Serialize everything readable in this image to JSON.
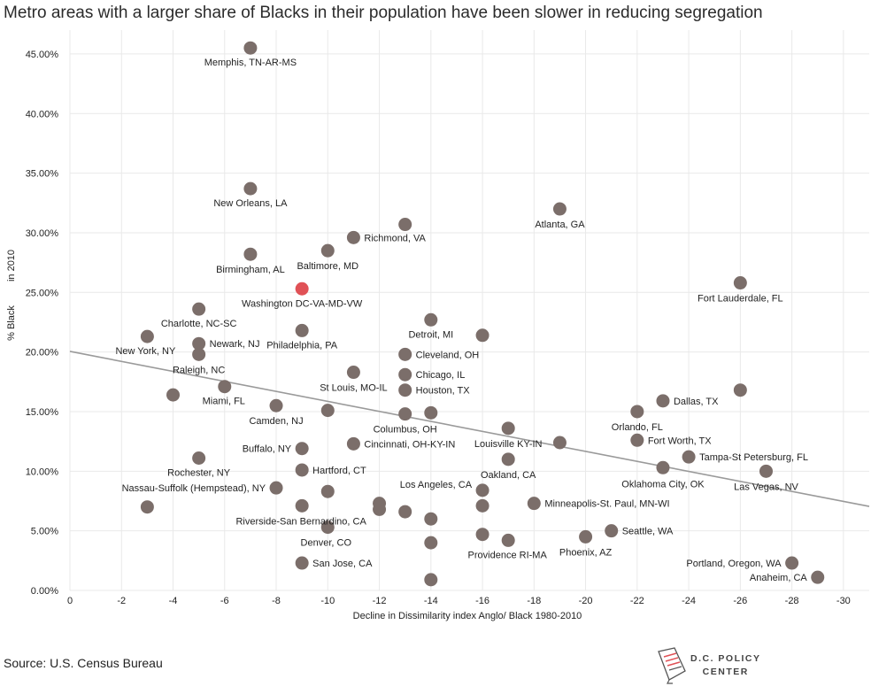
{
  "title": "Metro areas with a larger share of Blacks in their population have been slower in reducing segregation",
  "source": "Source: U.S. Census Bureau",
  "logo": {
    "line1": "D.C. POLICY",
    "line2": "CENTER"
  },
  "colors": {
    "point": "#7b6e6a",
    "highlight": "#e05156",
    "trend": "#9a9a9a",
    "grid": "#e9e9e9"
  },
  "chart_data": {
    "type": "scatter",
    "xlabel": "Decline in Dissimilarity index Anglo/ Black 1980-2010",
    "ylabel_lines": [
      "% Black",
      "in 2010"
    ],
    "xlim": [
      0,
      -31
    ],
    "ylim": [
      0,
      0.47
    ],
    "x_ticks": [
      0,
      -2,
      -4,
      -6,
      -8,
      -10,
      -12,
      -14,
      -16,
      -18,
      -20,
      -22,
      -24,
      -26,
      -28,
      -30
    ],
    "x_tick_labels": [
      "0",
      "-2",
      "-4",
      "-6",
      "-8",
      "-10",
      "-12",
      "-14",
      "-16",
      "-18",
      "-20",
      "-22",
      "-24",
      "-26",
      "-28",
      "-30"
    ],
    "y_ticks": [
      0,
      0.05,
      0.1,
      0.15,
      0.2,
      0.25,
      0.3,
      0.35,
      0.4,
      0.45
    ],
    "y_tick_labels": [
      "0.00%",
      "5.00%",
      "10.00%",
      "15.00%",
      "20.00%",
      "25.00%",
      "30.00%",
      "35.00%",
      "40.00%",
      "45.00%"
    ],
    "trendline": {
      "x": [
        0,
        -31
      ],
      "y": [
        0.2005,
        0.0705
      ]
    },
    "points": [
      {
        "x": -7,
        "y": 0.455,
        "label": "Memphis, TN-AR-MS",
        "dx": 0,
        "dy": 20,
        "anchor": "middle"
      },
      {
        "x": -7,
        "y": 0.337,
        "label": "New Orleans, LA",
        "dx": 0,
        "dy": 20,
        "anchor": "middle"
      },
      {
        "x": -19,
        "y": 0.32,
        "label": "Atlanta, GA",
        "dx": 0,
        "dy": 21,
        "anchor": "middle"
      },
      {
        "x": -13,
        "y": 0.307,
        "label": "",
        "dx": 0,
        "dy": 0,
        "anchor": "middle"
      },
      {
        "x": -11,
        "y": 0.296,
        "label": "Richmond, VA",
        "dx": 12,
        "dy": 4,
        "anchor": "start"
      },
      {
        "x": -10,
        "y": 0.285,
        "label": "Baltimore, MD",
        "dx": 0,
        "dy": 21,
        "anchor": "middle"
      },
      {
        "x": -7,
        "y": 0.282,
        "label": "Birmingham, AL",
        "dx": 0,
        "dy": 21,
        "anchor": "middle"
      },
      {
        "x": -26,
        "y": 0.258,
        "label": "Fort Lauderdale, FL",
        "dx": 0,
        "dy": 21,
        "anchor": "middle"
      },
      {
        "x": -9,
        "y": 0.253,
        "label": "Washington DC-VA-MD-VW",
        "dx": 0,
        "dy": 20,
        "anchor": "middle",
        "highlight": true
      },
      {
        "x": -5,
        "y": 0.236,
        "label": "Charlotte, NC-SC",
        "dx": 0,
        "dy": 20,
        "anchor": "middle"
      },
      {
        "x": -14,
        "y": 0.227,
        "label": "Detroit, MI",
        "dx": 0,
        "dy": 20,
        "anchor": "middle"
      },
      {
        "x": -9,
        "y": 0.218,
        "label": "Philadelphia, PA",
        "dx": 0,
        "dy": 20,
        "anchor": "middle"
      },
      {
        "x": -16,
        "y": 0.214,
        "label": "",
        "dx": 0,
        "dy": 0,
        "anchor": "middle"
      },
      {
        "x": -3,
        "y": 0.213,
        "label": "New York, NY",
        "dx": -2,
        "dy": 20,
        "anchor": "middle"
      },
      {
        "x": -5,
        "y": 0.207,
        "label": "Newark, NJ",
        "dx": 12,
        "dy": 4,
        "anchor": "start"
      },
      {
        "x": -5,
        "y": 0.198,
        "label": "Raleigh, NC",
        "dx": 0,
        "dy": 21,
        "anchor": "middle"
      },
      {
        "x": -13,
        "y": 0.198,
        "label": "Cleveland, OH",
        "dx": 12,
        "dy": 4,
        "anchor": "start"
      },
      {
        "x": -11,
        "y": 0.183,
        "label": "St Louis, MO-IL",
        "dx": 0,
        "dy": 21,
        "anchor": "middle"
      },
      {
        "x": -13,
        "y": 0.181,
        "label": "Chicago, IL",
        "dx": 12,
        "dy": 4,
        "anchor": "start"
      },
      {
        "x": -6,
        "y": 0.171,
        "label": "Miami, FL",
        "dx": -1,
        "dy": 20,
        "anchor": "middle"
      },
      {
        "x": -13,
        "y": 0.168,
        "label": "Houston, TX",
        "dx": 12,
        "dy": 4,
        "anchor": "start"
      },
      {
        "x": -26,
        "y": 0.168,
        "label": "",
        "dx": 0,
        "dy": 0,
        "anchor": "middle"
      },
      {
        "x": -4,
        "y": 0.164,
        "label": "",
        "dx": 0,
        "dy": 0,
        "anchor": "middle"
      },
      {
        "x": -23,
        "y": 0.159,
        "label": "Dallas, TX",
        "dx": 12,
        "dy": 4,
        "anchor": "start"
      },
      {
        "x": -8,
        "y": 0.155,
        "label": "Camden, NJ",
        "dx": 0,
        "dy": 21,
        "anchor": "middle"
      },
      {
        "x": -10,
        "y": 0.151,
        "label": "",
        "dx": 0,
        "dy": 0,
        "anchor": "middle"
      },
      {
        "x": -22,
        "y": 0.15,
        "label": "Orlando, FL",
        "dx": 0,
        "dy": 21,
        "anchor": "middle"
      },
      {
        "x": -13,
        "y": 0.148,
        "label": "Columbus, OH",
        "dx": 0,
        "dy": 21,
        "anchor": "middle"
      },
      {
        "x": -14,
        "y": 0.149,
        "label": "",
        "dx": 0,
        "dy": 0,
        "anchor": "middle"
      },
      {
        "x": -17,
        "y": 0.136,
        "label": "Louisville KY-IN",
        "dx": 0,
        "dy": 21,
        "anchor": "middle"
      },
      {
        "x": -22,
        "y": 0.126,
        "label": "Fort Worth, TX",
        "dx": 12,
        "dy": 4,
        "anchor": "start"
      },
      {
        "x": -19,
        "y": 0.124,
        "label": "",
        "dx": 0,
        "dy": 0,
        "anchor": "middle"
      },
      {
        "x": -11,
        "y": 0.123,
        "label": "Cincinnati, OH-KY-IN",
        "dx": 12,
        "dy": 4,
        "anchor": "start"
      },
      {
        "x": -9,
        "y": 0.119,
        "label": "Buffalo, NY",
        "dx": -12,
        "dy": 4,
        "anchor": "end"
      },
      {
        "x": -24,
        "y": 0.112,
        "label": "Tampa-St Petersburg, FL",
        "dx": 12,
        "dy": 4,
        "anchor": "start"
      },
      {
        "x": -5,
        "y": 0.111,
        "label": "Rochester, NY",
        "dx": 0,
        "dy": 20,
        "anchor": "middle"
      },
      {
        "x": -17,
        "y": 0.11,
        "label": "Oakland, CA",
        "dx": 0,
        "dy": 21,
        "anchor": "middle"
      },
      {
        "x": -23,
        "y": 0.103,
        "label": "Oklahoma City, OK",
        "dx": 0,
        "dy": 22,
        "anchor": "middle"
      },
      {
        "x": -9,
        "y": 0.101,
        "label": "Hartford, CT",
        "dx": 12,
        "dy": 4,
        "anchor": "start"
      },
      {
        "x": -27,
        "y": 0.1,
        "label": "Las Vegas, NV",
        "dx": 0,
        "dy": 21,
        "anchor": "middle"
      },
      {
        "x": -8,
        "y": 0.086,
        "label": "Nassau-Suffolk (Hempstead), NY",
        "dx": -12,
        "dy": 4,
        "anchor": "end"
      },
      {
        "x": -16,
        "y": 0.084,
        "label": "Los Angeles, CA",
        "dx": -12,
        "dy": -3,
        "anchor": "end"
      },
      {
        "x": -10,
        "y": 0.083,
        "label": "",
        "dx": 0,
        "dy": 0,
        "anchor": "middle"
      },
      {
        "x": -18,
        "y": 0.073,
        "label": "Minneapolis-St. Paul, MN-WI",
        "dx": 12,
        "dy": 4,
        "anchor": "start"
      },
      {
        "x": -12,
        "y": 0.073,
        "label": "",
        "dx": 0,
        "dy": 0,
        "anchor": "middle"
      },
      {
        "x": -12,
        "y": 0.068,
        "label": "",
        "dx": 0,
        "dy": 0,
        "anchor": "middle"
      },
      {
        "x": -3,
        "y": 0.07,
        "label": "",
        "dx": 0,
        "dy": 0,
        "anchor": "middle"
      },
      {
        "x": -9,
        "y": 0.071,
        "label": "Riverside-San Bernardino, CA",
        "dx": -1,
        "dy": 21,
        "anchor": "middle"
      },
      {
        "x": -16,
        "y": 0.071,
        "label": "",
        "dx": 0,
        "dy": 0,
        "anchor": "middle"
      },
      {
        "x": -13,
        "y": 0.066,
        "label": "",
        "dx": 0,
        "dy": 0,
        "anchor": "middle"
      },
      {
        "x": -14,
        "y": 0.06,
        "label": "",
        "dx": 0,
        "dy": 0,
        "anchor": "middle"
      },
      {
        "x": -10,
        "y": 0.053,
        "label": "Denver, CO",
        "dx": -2,
        "dy": 21,
        "anchor": "middle"
      },
      {
        "x": -21,
        "y": 0.05,
        "label": "Seattle, WA",
        "dx": 12,
        "dy": 4,
        "anchor": "start"
      },
      {
        "x": -16,
        "y": 0.047,
        "label": "",
        "dx": 0,
        "dy": 0,
        "anchor": "middle"
      },
      {
        "x": -20,
        "y": 0.045,
        "label": "Phoenix, AZ",
        "dx": 0,
        "dy": 21,
        "anchor": "middle"
      },
      {
        "x": -17,
        "y": 0.042,
        "label": "Providence RI-MA",
        "dx": -1,
        "dy": 20,
        "anchor": "middle"
      },
      {
        "x": -14,
        "y": 0.04,
        "label": "",
        "dx": 0,
        "dy": 0,
        "anchor": "middle"
      },
      {
        "x": -28,
        "y": 0.023,
        "label": "Portland, Oregon, WA",
        "dx": -12,
        "dy": 4,
        "anchor": "end"
      },
      {
        "x": -9,
        "y": 0.023,
        "label": "San Jose, CA",
        "dx": 12,
        "dy": 4,
        "anchor": "start"
      },
      {
        "x": -29,
        "y": 0.011,
        "label": "Anaheim, CA",
        "dx": -12,
        "dy": 4,
        "anchor": "end"
      },
      {
        "x": -14,
        "y": 0.009,
        "label": "",
        "dx": 0,
        "dy": 0,
        "anchor": "middle"
      }
    ]
  }
}
